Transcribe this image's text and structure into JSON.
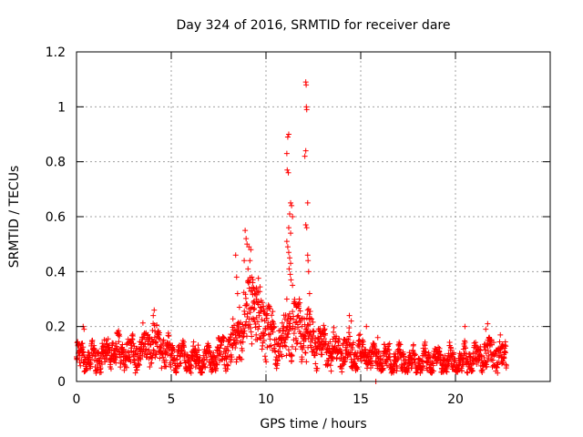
{
  "chart_data": {
    "type": "scatter",
    "title": "Day 324 of 2016, SRMTID for receiver dare",
    "xlabel": "GPS time / hours",
    "ylabel": "SRMTID / TECUs",
    "xlim": [
      0,
      25
    ],
    "ylim": [
      0,
      1.2
    ],
    "xticks": [
      0,
      5,
      10,
      15,
      20
    ],
    "xtick_labels": [
      "0",
      "5",
      "10",
      "15",
      "20"
    ],
    "yticks": [
      0,
      0.2,
      0.4,
      0.6,
      0.8,
      1.0,
      1.2
    ],
    "ytick_labels": [
      "0",
      "0.2",
      "0.4",
      "0.6",
      "0.8",
      "1",
      "1.2"
    ],
    "grid": true,
    "marker": "+",
    "color": "#ff0000",
    "baseline_profile": [
      [
        0.0,
        0.09
      ],
      [
        1.0,
        0.08
      ],
      [
        2.0,
        0.11
      ],
      [
        3.0,
        0.1
      ],
      [
        4.0,
        0.14
      ],
      [
        5.0,
        0.09
      ],
      [
        6.0,
        0.08
      ],
      [
        7.0,
        0.08
      ],
      [
        8.0,
        0.11
      ],
      [
        8.7,
        0.18
      ],
      [
        9.2,
        0.28
      ],
      [
        9.8,
        0.22
      ],
      [
        10.5,
        0.14
      ],
      [
        11.0,
        0.16
      ],
      [
        11.5,
        0.2
      ],
      [
        12.2,
        0.17
      ],
      [
        13.0,
        0.12
      ],
      [
        14.0,
        0.11
      ],
      [
        15.0,
        0.1
      ],
      [
        16.0,
        0.08
      ],
      [
        17.0,
        0.08
      ],
      [
        18.0,
        0.07
      ],
      [
        19.0,
        0.08
      ],
      [
        20.0,
        0.07
      ],
      [
        21.0,
        0.08
      ],
      [
        22.0,
        0.11
      ],
      [
        22.7,
        0.09
      ]
    ],
    "points": [
      [
        0.35,
        0.2
      ],
      [
        0.4,
        0.19
      ],
      [
        4.1,
        0.26
      ],
      [
        4.05,
        0.24
      ],
      [
        8.4,
        0.46
      ],
      [
        8.45,
        0.38
      ],
      [
        8.5,
        0.32
      ],
      [
        8.6,
        0.27
      ],
      [
        8.9,
        0.55
      ],
      [
        8.95,
        0.52
      ],
      [
        9.0,
        0.5
      ],
      [
        8.85,
        0.44
      ],
      [
        9.1,
        0.49
      ],
      [
        9.2,
        0.48
      ],
      [
        9.15,
        0.44
      ],
      [
        9.05,
        0.41
      ],
      [
        9.25,
        0.38
      ],
      [
        9.3,
        0.36
      ],
      [
        9.35,
        0.34
      ],
      [
        9.4,
        0.32
      ],
      [
        9.5,
        0.3
      ],
      [
        9.6,
        0.28
      ],
      [
        9.7,
        0.27
      ],
      [
        9.9,
        0.26
      ],
      [
        11.15,
        0.89
      ],
      [
        11.2,
        0.9
      ],
      [
        11.1,
        0.83
      ],
      [
        11.12,
        0.77
      ],
      [
        11.18,
        0.76
      ],
      [
        11.3,
        0.65
      ],
      [
        11.35,
        0.64
      ],
      [
        11.25,
        0.61
      ],
      [
        11.4,
        0.6
      ],
      [
        11.2,
        0.56
      ],
      [
        11.3,
        0.54
      ],
      [
        11.1,
        0.51
      ],
      [
        11.15,
        0.49
      ],
      [
        11.2,
        0.47
      ],
      [
        11.25,
        0.45
      ],
      [
        11.3,
        0.43
      ],
      [
        11.22,
        0.41
      ],
      [
        11.28,
        0.39
      ],
      [
        11.32,
        0.37
      ],
      [
        11.4,
        0.35
      ],
      [
        11.1,
        0.3
      ],
      [
        11.5,
        0.29
      ],
      [
        11.6,
        0.27
      ],
      [
        11.7,
        0.24
      ],
      [
        11.8,
        0.22
      ],
      [
        11.9,
        0.2
      ],
      [
        12.1,
        1.09
      ],
      [
        12.12,
        1.08
      ],
      [
        12.13,
        1.0
      ],
      [
        12.15,
        0.99
      ],
      [
        12.1,
        0.84
      ],
      [
        12.05,
        0.82
      ],
      [
        12.2,
        0.65
      ],
      [
        12.1,
        0.57
      ],
      [
        12.15,
        0.56
      ],
      [
        12.2,
        0.46
      ],
      [
        12.22,
        0.44
      ],
      [
        12.25,
        0.4
      ],
      [
        12.3,
        0.32
      ],
      [
        12.2,
        0.26
      ],
      [
        12.35,
        0.23
      ],
      [
        14.4,
        0.24
      ],
      [
        14.5,
        0.22
      ],
      [
        15.3,
        0.2
      ],
      [
        15.9,
        0.16
      ],
      [
        20.5,
        0.2
      ],
      [
        21.7,
        0.21
      ],
      [
        21.6,
        0.19
      ],
      [
        15.8,
        0.0
      ]
    ]
  }
}
